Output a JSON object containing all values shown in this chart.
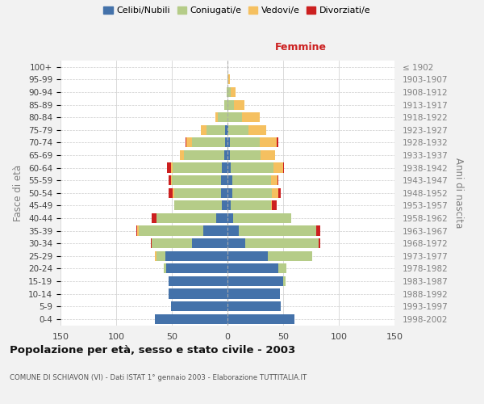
{
  "age_groups": [
    "0-4",
    "5-9",
    "10-14",
    "15-19",
    "20-24",
    "25-29",
    "30-34",
    "35-39",
    "40-44",
    "45-49",
    "50-54",
    "55-59",
    "60-64",
    "65-69",
    "70-74",
    "75-79",
    "80-84",
    "85-89",
    "90-94",
    "95-99",
    "100+"
  ],
  "birth_years": [
    "1998-2002",
    "1993-1997",
    "1988-1992",
    "1983-1987",
    "1978-1982",
    "1973-1977",
    "1968-1972",
    "1963-1967",
    "1958-1962",
    "1953-1957",
    "1948-1952",
    "1943-1947",
    "1938-1942",
    "1933-1937",
    "1928-1932",
    "1923-1927",
    "1918-1922",
    "1913-1917",
    "1908-1912",
    "1903-1907",
    "≤ 1902"
  ],
  "male_celibi": [
    65,
    51,
    53,
    53,
    55,
    56,
    32,
    22,
    10,
    5,
    6,
    6,
    5,
    3,
    2,
    2,
    0,
    0,
    0,
    0,
    0
  ],
  "male_coniugati": [
    0,
    0,
    0,
    0,
    2,
    8,
    36,
    58,
    54,
    43,
    42,
    44,
    44,
    36,
    30,
    17,
    9,
    3,
    1,
    0,
    0
  ],
  "male_vedovi": [
    0,
    0,
    0,
    0,
    0,
    1,
    0,
    1,
    0,
    0,
    1,
    1,
    2,
    4,
    5,
    5,
    2,
    0,
    0,
    0,
    0
  ],
  "male_divorziati": [
    0,
    0,
    0,
    0,
    0,
    0,
    1,
    1,
    4,
    0,
    4,
    2,
    3,
    0,
    1,
    0,
    0,
    0,
    0,
    0,
    0
  ],
  "fem_nubili": [
    60,
    48,
    47,
    50,
    46,
    36,
    16,
    10,
    5,
    3,
    4,
    4,
    3,
    2,
    2,
    1,
    0,
    0,
    0,
    0,
    0
  ],
  "fem_coniugate": [
    0,
    0,
    0,
    2,
    7,
    40,
    66,
    70,
    52,
    36,
    36,
    35,
    38,
    28,
    27,
    18,
    13,
    6,
    3,
    1,
    0
  ],
  "fem_vedove": [
    0,
    0,
    0,
    0,
    0,
    0,
    0,
    0,
    0,
    1,
    6,
    6,
    9,
    13,
    15,
    16,
    16,
    9,
    4,
    1,
    0
  ],
  "fem_divorziate": [
    0,
    0,
    0,
    0,
    0,
    0,
    1,
    3,
    0,
    4,
    2,
    1,
    1,
    0,
    2,
    0,
    0,
    0,
    0,
    0,
    0
  ],
  "colors": {
    "celibi": "#4472aa",
    "coniugati": "#b5cc88",
    "vedovi": "#f5c060",
    "divorziati": "#cc2020"
  },
  "xlim": 150,
  "title": "Popolazione per età, sesso e stato civile - 2003",
  "subtitle": "COMUNE DI SCHIAVON (VI) - Dati ISTAT 1° gennaio 2003 - Elaborazione TUTTITALIA.IT",
  "ylabel_left": "Fasce di età",
  "ylabel_right": "Anni di nascita",
  "label_femmine": "Femmine",
  "bg_color": "#f2f2f2",
  "plot_bg_color": "#ffffff",
  "grid_color": "#cccccc",
  "legend_labels": [
    "Celibi/Nubili",
    "Coniugati/e",
    "Vedovi/e",
    "Divorziati/e"
  ]
}
